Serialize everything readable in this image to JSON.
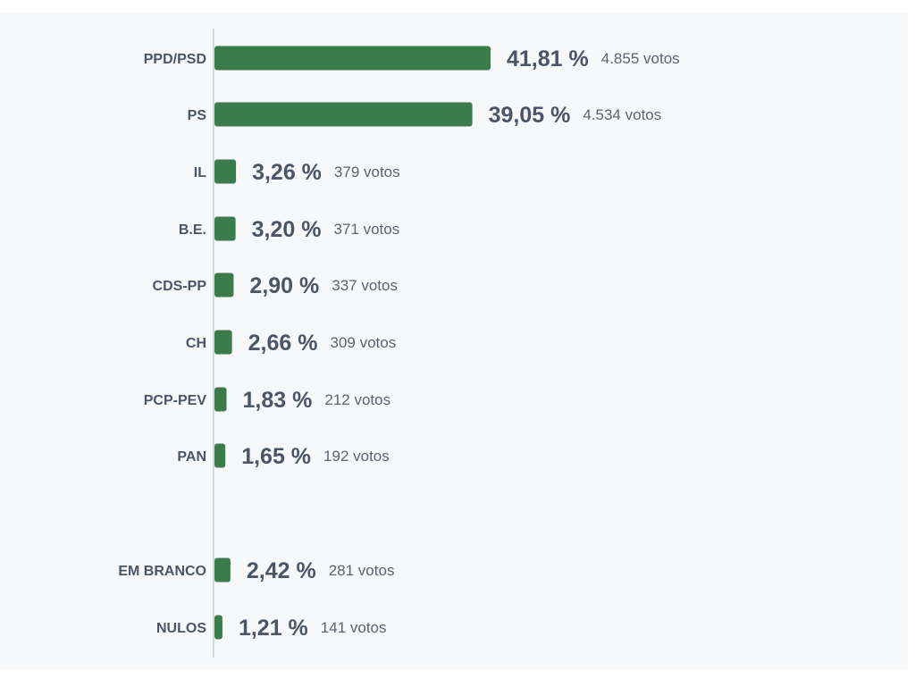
{
  "chart_data": {
    "type": "bar",
    "orientation": "horizontal",
    "bar_color": "#3a7d4a",
    "axis_color": "#c9ced6",
    "text_color": "#4a5568",
    "grid": false,
    "rows": [
      {
        "category": "PPD/PSD",
        "value": 41.81,
        "percent_label": "41,81 %",
        "votes_label": "4.855 votos"
      },
      {
        "category": "PS",
        "value": 39.05,
        "percent_label": "39,05 %",
        "votes_label": "4.534 votos"
      },
      {
        "category": "IL",
        "value": 3.26,
        "percent_label": "3,26 %",
        "votes_label": "379 votos"
      },
      {
        "category": "B.E.",
        "value": 3.2,
        "percent_label": "3,20 %",
        "votes_label": "371 votos"
      },
      {
        "category": "CDS-PP",
        "value": 2.9,
        "percent_label": "2,90 %",
        "votes_label": "337 votos"
      },
      {
        "category": "CH",
        "value": 2.66,
        "percent_label": "2,66 %",
        "votes_label": "309 votos"
      },
      {
        "category": "PCP-PEV",
        "value": 1.83,
        "percent_label": "1,83 %",
        "votes_label": "212 votos"
      },
      {
        "category": "PAN",
        "value": 1.65,
        "percent_label": "1,65 %",
        "votes_label": "192 votos"
      },
      {
        "category": "EM BRANCO",
        "value": 2.42,
        "percent_label": "2,42 %",
        "votes_label": "281 votos"
      },
      {
        "category": "NULOS",
        "value": 1.21,
        "percent_label": "1,21 %",
        "votes_label": "141 votos"
      }
    ]
  }
}
